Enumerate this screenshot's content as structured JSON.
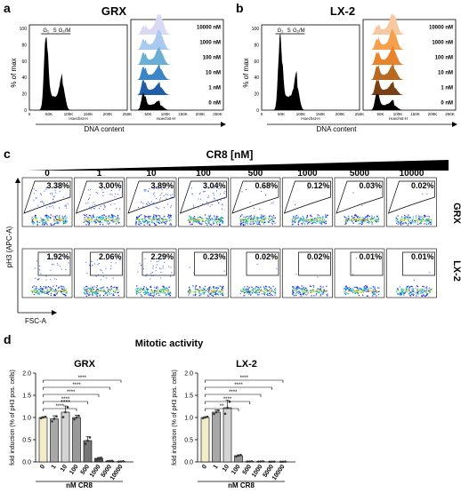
{
  "panels": {
    "a": {
      "letter": "a",
      "title": "GRX",
      "phase_labels": [
        "G₁",
        "S",
        "G₂/M"
      ],
      "y_axis_label": "% of max",
      "y_ticks": [
        "100",
        "80",
        "60",
        "40",
        "20",
        "0"
      ],
      "x_ticks": [
        "0",
        "50K",
        "100K",
        "150K",
        "200K",
        "250K"
      ],
      "x_axis_small_label": "Hoechst-H",
      "x_axis_label": "DNA content",
      "overlay_labels": [
        "10000 nM",
        "1000 nM",
        "100 nM",
        "10 nM",
        "1 nM",
        "0 nM"
      ],
      "overlay_colors": [
        "#d9d9f3",
        "#a9c9ee",
        "#6baed6",
        "#3b86c8",
        "#1f5fa8",
        "#000000"
      ]
    },
    "b": {
      "letter": "b",
      "title": "LX-2",
      "phase_labels": [
        "G₁",
        "S",
        "G₂/M"
      ],
      "y_axis_label": "% of max",
      "y_ticks": [
        "100",
        "80",
        "60",
        "40",
        "20",
        "0"
      ],
      "x_ticks": [
        "0",
        "50K",
        "100K",
        "150K",
        "200K",
        "250K"
      ],
      "x_axis_small_label": "Hoechst-H",
      "x_axis_label": "DNA content",
      "overlay_labels": [
        "10000 nM",
        "1000 nM",
        "100 nM",
        "10 nM",
        "1 nM",
        "0 nM"
      ],
      "overlay_colors": [
        "#f7c9a0",
        "#f5a04d",
        "#e9842c",
        "#b86a20",
        "#7a3f12",
        "#000000"
      ]
    },
    "c": {
      "letter": "c",
      "conc_title": "CR8 [nM]",
      "concentrations": [
        "0",
        "1",
        "10",
        "100",
        "500",
        "1000",
        "5000",
        "10000"
      ],
      "row_labels": [
        "GRX",
        "LX-2"
      ],
      "grx_percent": [
        "3.38%",
        "3.00%",
        "3.89%",
        "3.04%",
        "0.68%",
        "0.12%",
        "0.03%",
        "0.02%"
      ],
      "lx2_percent": [
        "1.92%",
        "2.06%",
        "2.29%",
        "0.23%",
        "0.02%",
        "0.02%",
        "0.01%",
        "0.01%"
      ],
      "y_axis_label": "pH3 (APC-A)",
      "x_axis_label": "FSC-A"
    },
    "d": {
      "letter": "d",
      "title": "Mitotic activity",
      "y_axis_label": "fold induction (% of pH3 pos. cells)",
      "y_ticks": [
        "0.0",
        "0.5",
        "1.0",
        "1.5",
        "2.0"
      ],
      "significance": "****",
      "x_axis_label": "nM CR8"
    }
  },
  "chart_data": [
    {
      "type": "bar",
      "title": "GRX",
      "categories": [
        "0",
        "1",
        "10",
        "100",
        "500",
        "1000",
        "5000",
        "10000"
      ],
      "values": [
        1.0,
        0.97,
        1.12,
        1.0,
        0.48,
        0.08,
        0.02,
        0.01
      ],
      "errors": [
        0.02,
        0.07,
        0.14,
        0.05,
        0.09,
        0.02,
        0.005,
        0.005
      ],
      "star_above": [
        false,
        false,
        true,
        false,
        false,
        false,
        false,
        false
      ],
      "brackets": [
        "****",
        "****",
        "****",
        "****",
        "****"
      ],
      "bar_colors": [
        "#f3eccb",
        "#a8a8a8",
        "#d4d4d4",
        "#9a9a9a",
        "#777777",
        "#4f4f4f",
        "#2a2a2a",
        "#111111"
      ],
      "xlabel": "nM CR8",
      "ylabel": "fold induction (% of pH3 pos. cells)",
      "ylim": [
        0,
        2.0
      ]
    },
    {
      "type": "bar",
      "title": "LX-2",
      "categories": [
        "0",
        "1",
        "10",
        "100",
        "500",
        "1000",
        "5000",
        "10000"
      ],
      "values": [
        1.0,
        1.12,
        1.22,
        0.14,
        0.01,
        0.01,
        0.005,
        0.005
      ],
      "errors": [
        0.02,
        0.05,
        0.17,
        0.02,
        0.003,
        0.003,
        0.002,
        0.002
      ],
      "brackets": [
        "**",
        "****",
        "****",
        "****",
        "****"
      ],
      "bar_colors": [
        "#f3eccb",
        "#a8a8a8",
        "#d4d4d4",
        "#9a9a9a",
        "#777777",
        "#4f4f4f",
        "#2a2a2a",
        "#111111"
      ],
      "xlabel": "nM CR8",
      "ylabel": "fold induction (% of pH3 pos. cells)",
      "ylim": [
        0,
        2.0
      ]
    }
  ]
}
